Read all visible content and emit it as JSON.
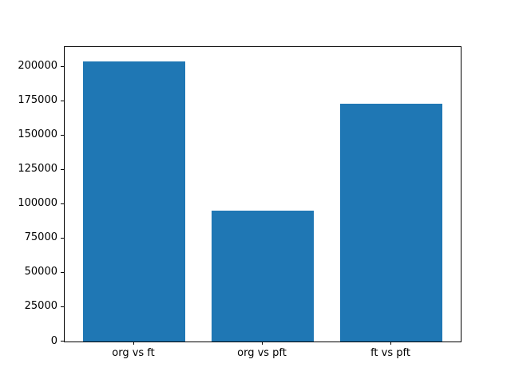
{
  "chart_data": {
    "type": "bar",
    "categories": [
      "org vs ft",
      "org vs pft",
      "ft vs pft"
    ],
    "values": [
      204000,
      95000,
      173000
    ],
    "title": "",
    "xlabel": "",
    "ylabel": "",
    "ylim": [
      0,
      214200
    ],
    "xlim": [
      -0.54,
      2.54
    ],
    "yticks": [
      0,
      25000,
      50000,
      75000,
      100000,
      125000,
      150000,
      175000,
      200000
    ],
    "ytick_labels": [
      "0",
      "25000",
      "50000",
      "75000",
      "100000",
      "125000",
      "150000",
      "175000",
      "200000"
    ],
    "bar_color": "#1f77b4",
    "bar_width_fraction": 0.8,
    "grid": false,
    "legend": false,
    "background_color": "#ffffff",
    "axis_color": "#000000"
  }
}
